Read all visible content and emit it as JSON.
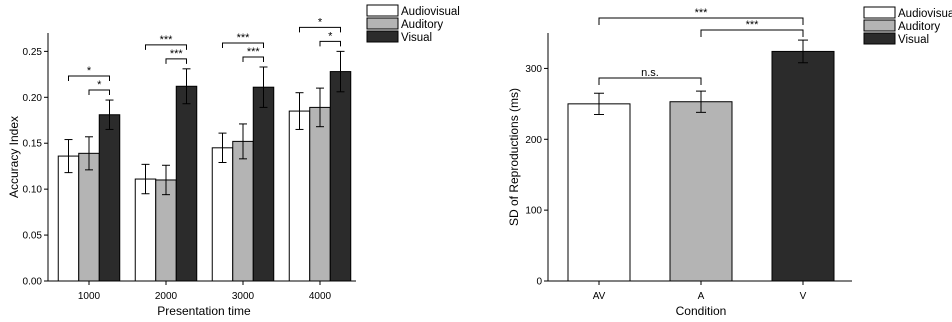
{
  "chart_data": [
    {
      "type": "bar",
      "xlabel": "Presentation time",
      "ylabel": "Accuracy Index",
      "categories": [
        "1000",
        "2000",
        "3000",
        "4000"
      ],
      "ylim": [
        0,
        0.27
      ],
      "yticks": [
        "0.00",
        "0.05",
        "0.10",
        "0.15",
        "0.20",
        "0.25"
      ],
      "series": [
        {
          "name": "Audiovisual",
          "color": "#ffffff",
          "values": [
            0.136,
            0.111,
            0.145,
            0.185
          ],
          "errors": [
            0.018,
            0.016,
            0.016,
            0.02
          ]
        },
        {
          "name": "Auditory",
          "color": "#b4b4b4",
          "values": [
            0.139,
            0.11,
            0.152,
            0.189
          ],
          "errors": [
            0.018,
            0.016,
            0.019,
            0.021
          ]
        },
        {
          "name": "Visual",
          "color": "#2b2b2b",
          "values": [
            0.181,
            0.212,
            0.211,
            0.228
          ],
          "errors": [
            0.016,
            0.019,
            0.022,
            0.022
          ]
        }
      ],
      "significance": [
        {
          "category": 0,
          "from": 0,
          "to": 2,
          "label": "*"
        },
        {
          "category": 0,
          "from": 1,
          "to": 2,
          "label": "*"
        },
        {
          "category": 1,
          "from": 0,
          "to": 2,
          "label": "***"
        },
        {
          "category": 1,
          "from": 1,
          "to": 2,
          "label": "***"
        },
        {
          "category": 2,
          "from": 0,
          "to": 2,
          "label": "***"
        },
        {
          "category": 2,
          "from": 1,
          "to": 2,
          "label": "***"
        },
        {
          "category": 3,
          "from": 0,
          "to": 2,
          "label": "*"
        },
        {
          "category": 3,
          "from": 1,
          "to": 2,
          "label": "*"
        }
      ],
      "legend": "top-right"
    },
    {
      "type": "bar",
      "xlabel": "Condition",
      "ylabel": "SD of Reproductions (ms)",
      "categories": [
        "AV",
        "A",
        "V"
      ],
      "ylim": [
        0,
        350
      ],
      "yticks": [
        "0",
        "100",
        "200",
        "300"
      ],
      "values": [
        250,
        253,
        324
      ],
      "errors": [
        15,
        15,
        16
      ],
      "colors": [
        "#ffffff",
        "#b4b4b4",
        "#2b2b2b"
      ],
      "series_names": [
        "Audiovisual",
        "Auditory",
        "Visual"
      ],
      "significance": [
        {
          "from": 0,
          "to": 2,
          "label": "***"
        },
        {
          "from": 1,
          "to": 2,
          "label": "***"
        },
        {
          "from": 0,
          "to": 1,
          "label": "n.s."
        }
      ],
      "legend": "top-right"
    }
  ]
}
